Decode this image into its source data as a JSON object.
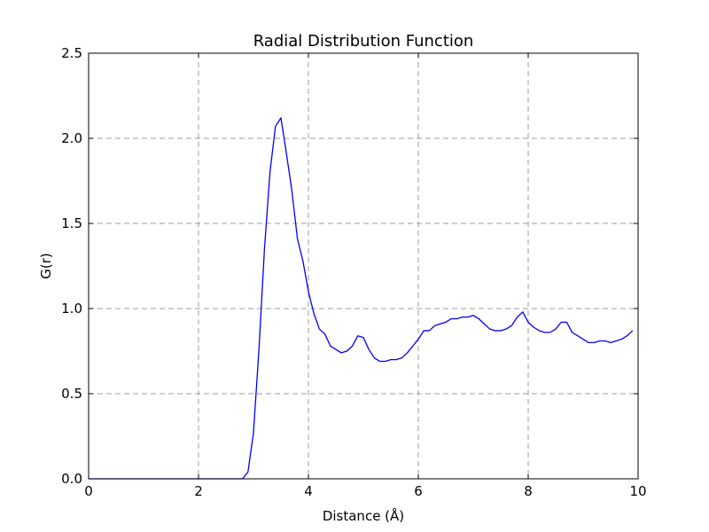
{
  "chart_data": {
    "type": "line",
    "title": "Radial Distribution Function",
    "xlabel": "Distance (Å)",
    "ylabel": "G(r)",
    "xlim": [
      0,
      10
    ],
    "ylim": [
      0,
      2.5
    ],
    "x_ticks": [
      0,
      2,
      4,
      6,
      8,
      10
    ],
    "x_tick_labels": [
      "0",
      "2",
      "4",
      "6",
      "8",
      "10"
    ],
    "y_ticks": [
      0.0,
      0.5,
      1.0,
      1.5,
      2.0,
      2.5
    ],
    "y_tick_labels": [
      "0.0",
      "0.5",
      "1.0",
      "1.5",
      "2.0",
      "2.5"
    ],
    "grid": true,
    "line_color": "#0000ff",
    "grid_color": "#9e9e9e",
    "series": [
      {
        "x": [
          0.0,
          0.5,
          1.0,
          1.5,
          2.0,
          2.5,
          2.8,
          2.9,
          3.0,
          3.1,
          3.2,
          3.3,
          3.4,
          3.5,
          3.6,
          3.7,
          3.8,
          3.9,
          4.0,
          4.1,
          4.2,
          4.3,
          4.4,
          4.5,
          4.6,
          4.7,
          4.8,
          4.9,
          5.0,
          5.1,
          5.2,
          5.3,
          5.4,
          5.5,
          5.6,
          5.7,
          5.8,
          5.9,
          6.0,
          6.1,
          6.2,
          6.3,
          6.4,
          6.5,
          6.6,
          6.7,
          6.8,
          6.9,
          7.0,
          7.1,
          7.2,
          7.3,
          7.4,
          7.5,
          7.6,
          7.7,
          7.8,
          7.9,
          8.0,
          8.1,
          8.2,
          8.3,
          8.4,
          8.5,
          8.6,
          8.7,
          8.8,
          8.9,
          9.0,
          9.1,
          9.2,
          9.3,
          9.4,
          9.5,
          9.6,
          9.7,
          9.8,
          9.9
        ],
        "values": [
          0.0,
          0.0,
          0.0,
          0.0,
          0.0,
          0.0,
          0.0,
          0.04,
          0.27,
          0.76,
          1.35,
          1.8,
          2.07,
          2.12,
          1.91,
          1.69,
          1.41,
          1.28,
          1.1,
          0.97,
          0.88,
          0.85,
          0.78,
          0.76,
          0.74,
          0.75,
          0.78,
          0.84,
          0.83,
          0.76,
          0.71,
          0.69,
          0.69,
          0.7,
          0.7,
          0.71,
          0.74,
          0.78,
          0.82,
          0.87,
          0.87,
          0.9,
          0.91,
          0.92,
          0.94,
          0.94,
          0.95,
          0.95,
          0.96,
          0.94,
          0.91,
          0.88,
          0.87,
          0.87,
          0.88,
          0.9,
          0.95,
          0.98,
          0.92,
          0.89,
          0.87,
          0.86,
          0.86,
          0.88,
          0.92,
          0.92,
          0.86,
          0.84,
          0.82,
          0.8,
          0.8,
          0.81,
          0.81,
          0.8,
          0.81,
          0.82,
          0.84,
          0.87
        ]
      }
    ]
  }
}
